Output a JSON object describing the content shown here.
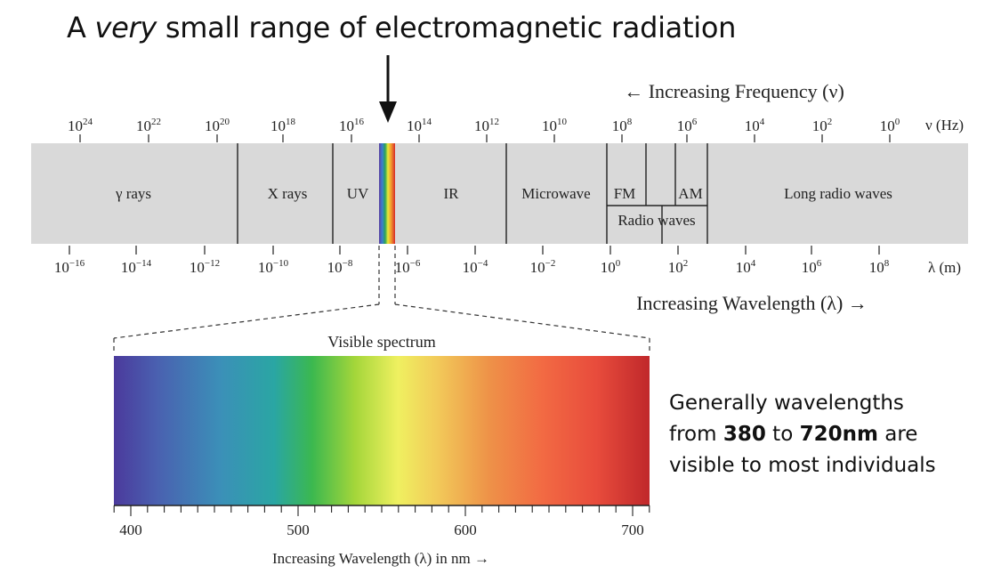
{
  "title": {
    "prefix": "A ",
    "emphasis": "very",
    "suffix": " small range of electromagnetic radiation"
  },
  "frequency_axis": {
    "heading": "← Increasing Frequency (ν)",
    "unit": "ν (Hz)",
    "exponents": [
      "24",
      "22",
      "20",
      "18",
      "16",
      "14",
      "12",
      "10",
      "8",
      "6",
      "4",
      "2",
      "0"
    ]
  },
  "wavelength_axis": {
    "heading": "Increasing Wavelength (λ) →",
    "unit": "λ (m)",
    "exponents": [
      "−16",
      "−14",
      "−12",
      "−10",
      "−8",
      "−6",
      "−4",
      "−2",
      "0",
      "2",
      "4",
      "6",
      "8"
    ]
  },
  "bands": {
    "gamma": "γ rays",
    "xray": "X rays",
    "uv": "UV",
    "ir": "IR",
    "microwave": "Microwave",
    "fm": "FM",
    "am": "AM",
    "radio": "Radio waves",
    "long_radio": "Long radio waves"
  },
  "visible": {
    "title": "Visible spectrum",
    "ticks": [
      "400",
      "500",
      "600",
      "700"
    ],
    "axis_label": "Increasing Wavelength (λ) in nm →"
  },
  "note": {
    "line1": "Generally wavelengths",
    "line2_a": "from ",
    "line2_b": "380",
    "line2_c": " to ",
    "line2_d": "720nm",
    "line2_e": " are",
    "line3": "visible to most individuals"
  },
  "colors": {
    "band_fill": "#d9d9d9",
    "separator": "#222222"
  }
}
